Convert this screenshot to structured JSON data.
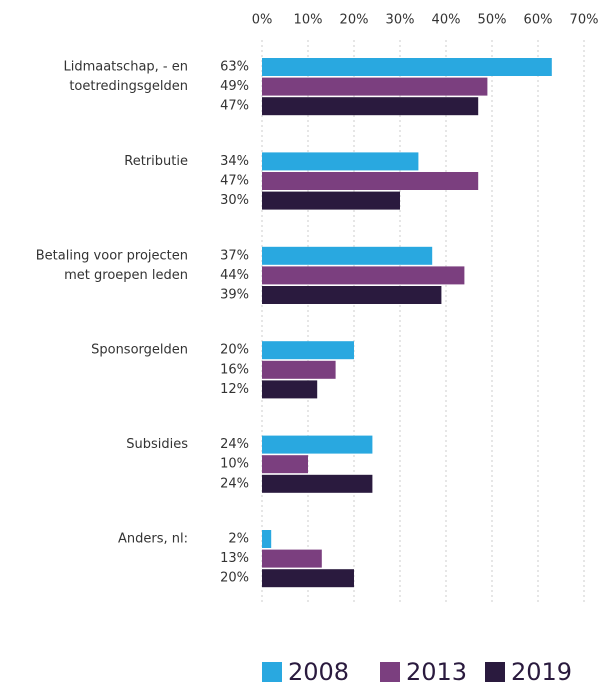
{
  "chart_data": {
    "type": "bar",
    "orientation": "horizontal",
    "categories": [
      [
        "Lidmaatschap, - en",
        "toetredingsgelden"
      ],
      [
        "Retributie"
      ],
      [
        "Betaling voor projecten",
        "met groepen leden"
      ],
      [
        "Sponsorgelden"
      ],
      [
        "Subsidies"
      ],
      [
        "Anders, nl:"
      ]
    ],
    "series": [
      {
        "name": "2008",
        "color": "#29a8e0",
        "values": [
          63,
          34,
          37,
          20,
          24,
          2
        ],
        "value_labels": [
          "63%",
          "34%",
          "37%",
          "20%",
          "24%",
          "2%"
        ]
      },
      {
        "name": "2013",
        "color": "#7b3f7f",
        "values": [
          49,
          47,
          44,
          16,
          10,
          13
        ],
        "value_labels": [
          "49%",
          "47%",
          "44%",
          "16%",
          "10%",
          "13%"
        ]
      },
      {
        "name": "2019",
        "color": "#2a1a3e",
        "values": [
          47,
          30,
          39,
          12,
          24,
          20
        ],
        "value_labels": [
          "47%",
          "30%",
          "39%",
          "12%",
          "24%",
          "20%"
        ]
      }
    ],
    "xlim": [
      0,
      70
    ],
    "xticks": [
      {
        "value": 0,
        "label": "0%"
      },
      {
        "value": 10,
        "label": "10%"
      },
      {
        "value": 20,
        "label": "20%"
      },
      {
        "value": 30,
        "label": "30%"
      },
      {
        "value": 40,
        "label": "40%"
      },
      {
        "value": 50,
        "label": "50%"
      },
      {
        "value": 60,
        "label": "60%"
      },
      {
        "value": 70,
        "label": "70%"
      }
    ],
    "grid": true,
    "legend": "bottom"
  }
}
